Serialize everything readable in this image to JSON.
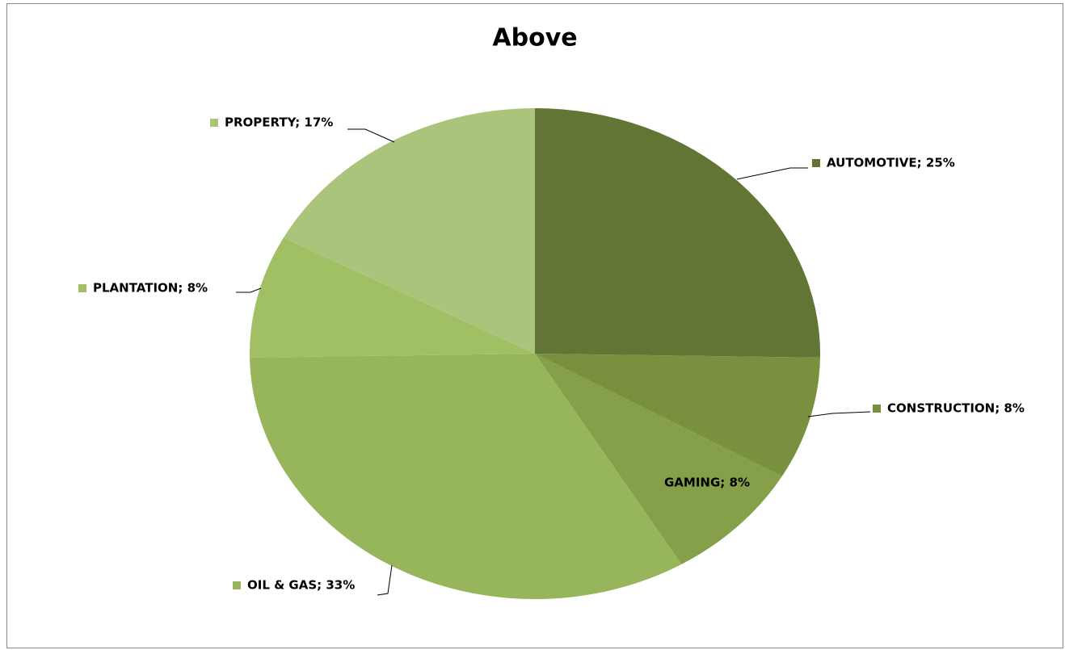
{
  "chart_data": {
    "type": "pie",
    "title": "Above",
    "categories": [
      "AUTOMOTIVE",
      "CONSTRUCTION",
      "GAMING",
      "OIL & GAS",
      "PLANTATION",
      "PROPERTY"
    ],
    "values": [
      25,
      8,
      8,
      33,
      8,
      17
    ],
    "value_labels": [
      "AUTOMOTIVE; 25%",
      "CONSTRUCTION; 8%",
      "GAMING; 8%",
      "OIL & GAS; 33%",
      "PLANTATION; 8%",
      "PROPERTY; 17%"
    ],
    "colors": [
      "#637535",
      "#79913f",
      "#85a049",
      "#97b55a",
      "#a1bf63",
      "#abc47c"
    ]
  }
}
